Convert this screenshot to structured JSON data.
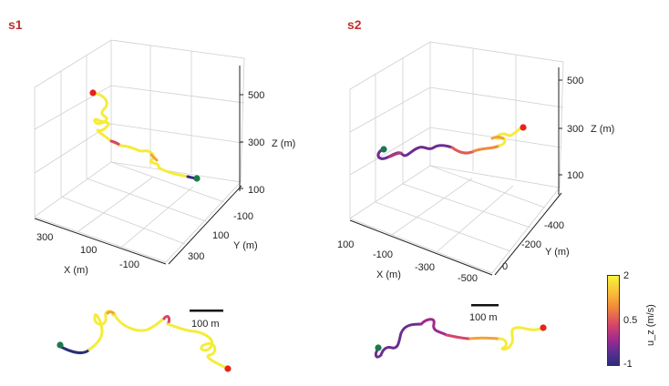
{
  "panels": {
    "s1": {
      "label": "s1",
      "z_ticks": [
        "500",
        "300",
        "100"
      ],
      "z_label": "Z (m)",
      "x_ticks": [
        "300",
        "100",
        "-100"
      ],
      "x_label": "X (m)",
      "y_ticks": [
        "-100",
        "100",
        "300"
      ],
      "y_label": "Y (m)",
      "scale_bar": "100 m"
    },
    "s2": {
      "label": "s2",
      "z_ticks": [
        "500",
        "300",
        "100"
      ],
      "z_label": "Z (m)",
      "x_ticks": [
        "100",
        "-100",
        "-300",
        "-500"
      ],
      "x_label": "X (m)",
      "y_ticks": [
        "-400",
        "-200",
        "0"
      ],
      "y_label": "Y (m)",
      "scale_bar": "100 m"
    }
  },
  "colorbar": {
    "title": "u_z (m/s)",
    "ticks": [
      "2",
      "0.5",
      "-1"
    ],
    "colors": [
      "#f9f33a",
      "#f9ba3a",
      "#f08a3a",
      "#d6456a",
      "#9c2a8e",
      "#5a2e93",
      "#2b2e7a"
    ]
  },
  "markers": {
    "start": "#1a7a4c",
    "end": "#e8231a"
  },
  "colors": {
    "label_red": "#c0302b",
    "grid": "#cfcfcf",
    "axis": "#222222"
  }
}
